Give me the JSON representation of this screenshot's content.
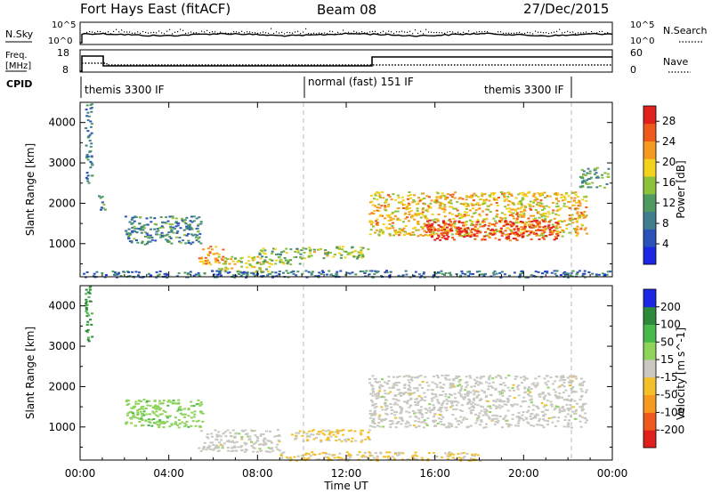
{
  "header": {
    "station": "Fort Hays East (fitACF)",
    "beam": "Beam 08",
    "date": "27/Dec/2015"
  },
  "noise_panel": {
    "left_label": "N.Sky",
    "left_ticks": [
      "10^5",
      "10^0"
    ],
    "right_label": "N.Search",
    "right_ticks": [
      "10^5",
      "10^0"
    ]
  },
  "freq_panel": {
    "left_label_1": "Freq.",
    "left_label_2": "[MHz]",
    "left_ticks": [
      "18",
      "8"
    ],
    "right_label": "Nave",
    "right_ticks": [
      "60",
      "0"
    ]
  },
  "cpid_panel": {
    "label": "CPID",
    "modes": [
      "themis 3300 IF",
      "normal (fast) 151 IF",
      "themis 3300 IF"
    ]
  },
  "chart_data": [
    {
      "type": "heatmap",
      "title": "Power",
      "ylabel": "Slant Range [km]",
      "xlabel": "",
      "x_ticks": [
        "00:00",
        "04:00",
        "08:00",
        "12:00",
        "16:00",
        "20:00",
        "00:00"
      ],
      "x_range_hours": [
        0,
        24
      ],
      "y_ticks": [
        1000,
        2000,
        3000,
        4000
      ],
      "ylim": [
        180,
        4500
      ],
      "colorbar_label": "Power [dB]",
      "colorbar_ticks": [
        4,
        8,
        12,
        16,
        20,
        24,
        28
      ],
      "colorbar_range": [
        0,
        31
      ],
      "colors": [
        "#1a28e6",
        "#2a52b8",
        "#3f7d8f",
        "#4f9a62",
        "#8ec23a",
        "#f2d21a",
        "#f59a1e",
        "#ef5a1c",
        "#e0201c"
      ],
      "regions": [
        {
          "time_hours": [
            0.2,
            0.5
          ],
          "range_km": [
            2500,
            4500
          ],
          "level_db": 8
        },
        {
          "time_hours": [
            0.8,
            1.1
          ],
          "range_km": [
            1800,
            2200
          ],
          "level_db": 10
        },
        {
          "time_hours": [
            2.0,
            5.5
          ],
          "range_km": [
            1000,
            1700
          ],
          "level_db": 10
        },
        {
          "time_hours": [
            5.3,
            6.4
          ],
          "range_km": [
            500,
            950
          ],
          "level_db": 22
        },
        {
          "time_hours": [
            6.2,
            8.5
          ],
          "range_km": [
            300,
            700
          ],
          "level_db": 18
        },
        {
          "time_hours": [
            8.0,
            10.0
          ],
          "range_km": [
            500,
            900
          ],
          "level_db": 14
        },
        {
          "time_hours": [
            10.0,
            13.0
          ],
          "range_km": [
            650,
            950
          ],
          "level_db": 16
        },
        {
          "time_hours": [
            13.0,
            22.8
          ],
          "range_km": [
            1200,
            2300
          ],
          "level_db": 20
        },
        {
          "time_hours": [
            15.5,
            21.5
          ],
          "range_km": [
            1100,
            1600
          ],
          "level_db": 28
        },
        {
          "time_hours": [
            22.5,
            23.8
          ],
          "range_km": [
            2400,
            2900
          ],
          "level_db": 12
        },
        {
          "time_hours": [
            0.0,
            24.0
          ],
          "range_km": [
            180,
            350
          ],
          "level_db": 8
        }
      ]
    },
    {
      "type": "heatmap",
      "title": "Velocity",
      "ylabel": "Slant Range [km]",
      "xlabel": "Time UT",
      "x_ticks": [
        "00:00",
        "04:00",
        "08:00",
        "12:00",
        "16:00",
        "20:00",
        "00:00"
      ],
      "x_range_hours": [
        0,
        24
      ],
      "y_ticks": [
        1000,
        2000,
        3000,
        4000
      ],
      "ylim": [
        180,
        4500
      ],
      "colorbar_label": "Velocity [m s^-1]",
      "colorbar_ticks": [
        200,
        100,
        50,
        15,
        -15,
        -50,
        -100,
        -200
      ],
      "colorbar_range": [
        -250,
        250
      ],
      "colors": [
        "#1a28e6",
        "#2c8a3a",
        "#48b94a",
        "#8fd35a",
        "#c8c8c0",
        "#f4c02a",
        "#f59a1e",
        "#ef5a1c",
        "#e0201c"
      ],
      "regions": [
        {
          "time_hours": [
            0.2,
            0.5
          ],
          "range_km": [
            3000,
            4500
          ],
          "velocity_ms": 150
        },
        {
          "time_hours": [
            2.0,
            5.5
          ],
          "range_km": [
            1000,
            1700
          ],
          "velocity_ms": 60
        },
        {
          "time_hours": [
            5.3,
            9.0
          ],
          "range_km": [
            400,
            950
          ],
          "velocity_ms": 0
        },
        {
          "time_hours": [
            9.5,
            13.0
          ],
          "range_km": [
            650,
            950
          ],
          "velocity_ms": -40
        },
        {
          "time_hours": [
            13.0,
            22.8
          ],
          "range_km": [
            1000,
            2300
          ],
          "velocity_ms": 0
        },
        {
          "time_hours": [
            9.0,
            18.0
          ],
          "range_km": [
            180,
            400
          ],
          "velocity_ms": -30
        }
      ]
    }
  ]
}
